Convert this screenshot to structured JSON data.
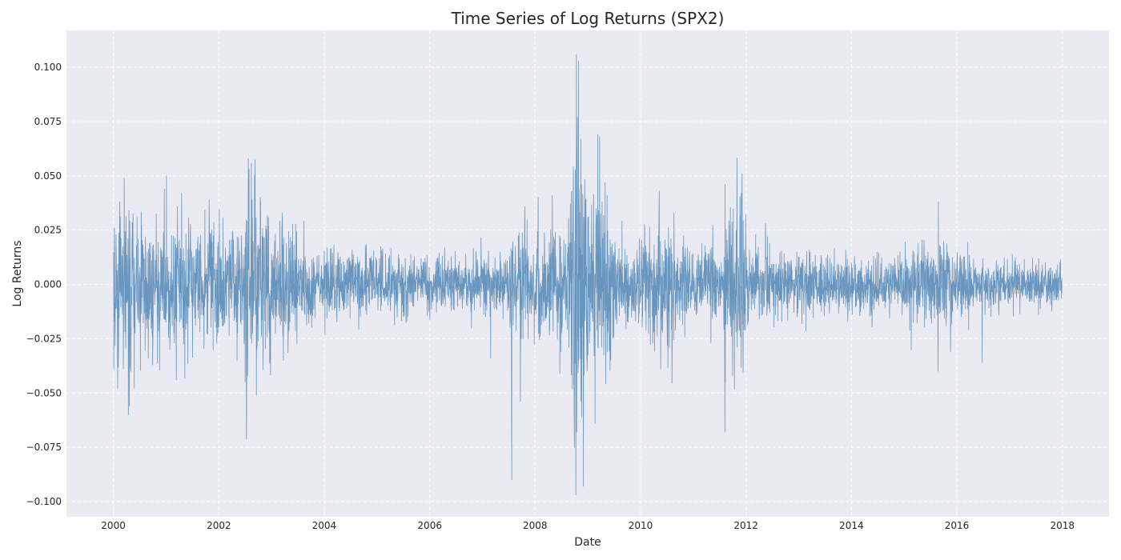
{
  "chart_data": {
    "type": "line",
    "title": "Time Series of Log Returns (SPX2)",
    "xlabel": "Date",
    "ylabel": "Log Returns",
    "x_start": "2000-01-03",
    "x_end": "2017-12-29",
    "xlim": [
      "1999-02-10",
      "2018-11-20"
    ],
    "ylim": [
      -0.107,
      0.117
    ],
    "x_ticks": [
      "2000",
      "2002",
      "2004",
      "2006",
      "2008",
      "2010",
      "2012",
      "2014",
      "2016",
      "2018"
    ],
    "y_ticks": [
      0.1,
      0.075,
      0.05,
      0.025,
      0.0,
      -0.025,
      -0.05,
      -0.075,
      -0.1
    ],
    "y_tick_labels": [
      "0.100",
      "0.075",
      "0.050",
      "0.025",
      "0.000",
      "−0.025",
      "−0.050",
      "−0.075",
      "−0.100"
    ],
    "grid": true,
    "series": [
      {
        "color": "#5b8db8",
        "volatility_regimes": [
          {
            "from": "2000-01-03",
            "to": "2000-06-30",
            "sigma": 0.016
          },
          {
            "from": "2000-06-30",
            "to": "2001-12-31",
            "sigma": 0.014
          },
          {
            "from": "2001-12-31",
            "to": "2002-06-30",
            "sigma": 0.013
          },
          {
            "from": "2002-06-30",
            "to": "2002-12-31",
            "sigma": 0.019
          },
          {
            "from": "2002-12-31",
            "to": "2003-06-30",
            "sigma": 0.012
          },
          {
            "from": "2003-06-30",
            "to": "2004-12-31",
            "sigma": 0.0075
          },
          {
            "from": "2004-12-31",
            "to": "2006-12-31",
            "sigma": 0.0065
          },
          {
            "from": "2006-12-31",
            "to": "2007-07-01",
            "sigma": 0.0075
          },
          {
            "from": "2007-07-01",
            "to": "2008-08-31",
            "sigma": 0.013
          },
          {
            "from": "2008-08-31",
            "to": "2008-12-31",
            "sigma": 0.032
          },
          {
            "from": "2008-12-31",
            "to": "2009-06-30",
            "sigma": 0.02
          },
          {
            "from": "2009-06-30",
            "to": "2010-04-30",
            "sigma": 0.01
          },
          {
            "from": "2010-04-30",
            "to": "2010-08-31",
            "sigma": 0.013
          },
          {
            "from": "2010-08-31",
            "to": "2011-07-31",
            "sigma": 0.008
          },
          {
            "from": "2011-07-31",
            "to": "2011-12-31",
            "sigma": 0.019
          },
          {
            "from": "2011-12-31",
            "to": "2012-12-31",
            "sigma": 0.008
          },
          {
            "from": "2012-12-31",
            "to": "2014-12-31",
            "sigma": 0.0065
          },
          {
            "from": "2014-12-31",
            "to": "2016-03-31",
            "sigma": 0.009
          },
          {
            "from": "2016-03-31",
            "to": "2017-12-29",
            "sigma": 0.005
          }
        ],
        "spikes": [
          {
            "date": "2000-01-04",
            "value": -0.039
          },
          {
            "date": "2000-01-08",
            "value": 0.026
          },
          {
            "date": "2000-03-16",
            "value": 0.049
          },
          {
            "date": "2000-04-14",
            "value": -0.06
          },
          {
            "date": "2000-04-18",
            "value": 0.034
          },
          {
            "date": "2001-01-03",
            "value": 0.05
          },
          {
            "date": "2001-03-12",
            "value": -0.044
          },
          {
            "date": "2001-04-18",
            "value": 0.042
          },
          {
            "date": "2002-07-19",
            "value": -0.042
          },
          {
            "date": "2002-07-24",
            "value": 0.058
          },
          {
            "date": "2002-07-29",
            "value": 0.053
          },
          {
            "date": "2002-10-15",
            "value": 0.04
          },
          {
            "date": "2003-03-17",
            "value": 0.033
          },
          {
            "date": "2003-03-24",
            "value": -0.035
          },
          {
            "date": "2007-02-27",
            "value": -0.034
          },
          {
            "date": "2008-01-22",
            "value": 0.04
          },
          {
            "date": "2008-09-15",
            "value": -0.048
          },
          {
            "date": "2008-09-29",
            "value": -0.075
          },
          {
            "date": "2008-10-09",
            "value": -0.097
          },
          {
            "date": "2008-10-13",
            "value": 0.106
          },
          {
            "date": "2008-10-15",
            "value": -0.068
          },
          {
            "date": "2008-10-28",
            "value": 0.103
          },
          {
            "date": "2008-11-13",
            "value": 0.067
          },
          {
            "date": "2008-12-01",
            "value": -0.093
          },
          {
            "date": "2009-03-10",
            "value": 0.069
          },
          {
            "date": "2009-03-23",
            "value": 0.068
          },
          {
            "date": "2010-05-10",
            "value": 0.043
          },
          {
            "date": "2010-05-20",
            "value": -0.039
          },
          {
            "date": "2011-08-08",
            "value": -0.068
          },
          {
            "date": "2011-08-09",
            "value": 0.046
          },
          {
            "date": "2011-08-10",
            "value": -0.045
          },
          {
            "date": "2011-11-30",
            "value": 0.042
          },
          {
            "date": "2015-08-24",
            "value": -0.04
          },
          {
            "date": "2015-08-26",
            "value": 0.038
          },
          {
            "date": "2016-06-24",
            "value": -0.036
          }
        ]
      }
    ]
  }
}
